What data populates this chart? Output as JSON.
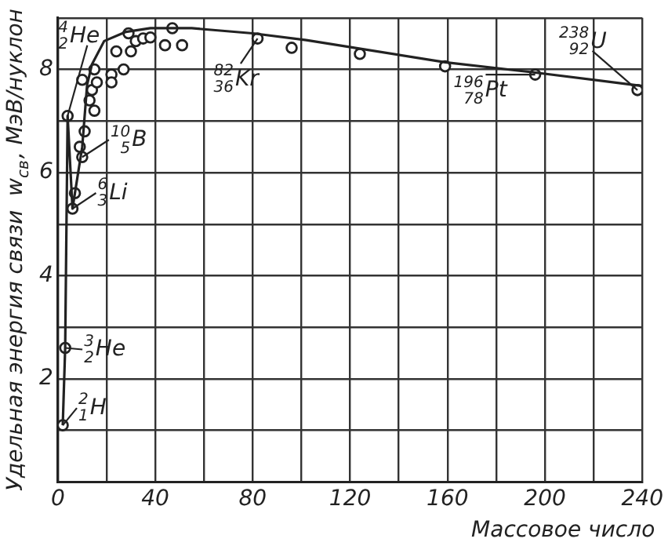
{
  "chart_data": {
    "type": "scatter",
    "xlabel": "Массовое число",
    "ylabel": "Удельная энергия связи  w$_{св}$, МэВ/нуклон",
    "xlim": [
      0,
      240
    ],
    "xticks": [
      0,
      {
        "value": 20,
        "label": null
      },
      40,
      {
        "value": 60,
        "label": null
      },
      80,
      {
        "value": 100,
        "label": null
      },
      120,
      {
        "value": 140,
        "label": null
      },
      160,
      {
        "value": 180,
        "label": null
      },
      200,
      {
        "value": 220,
        "label": null
      },
      240
    ],
    "ylim": [
      0,
      9
    ],
    "yticks": [
      {
        "value": 1,
        "label": null
      },
      2,
      {
        "value": 3,
        "label": null
      },
      4,
      {
        "value": 5,
        "label": null
      },
      6,
      {
        "value": 7,
        "label": null
      },
      8,
      {
        "value": 9,
        "label": null
      }
    ],
    "grid": true,
    "legend": false,
    "series": [
      {
        "type": "line",
        "marker": "none",
        "color": "#222222",
        "x": [
          2,
          3,
          4,
          6,
          7,
          10,
          12,
          14,
          19,
          28,
          38,
          55,
          80,
          102,
          159,
          196,
          240
        ],
        "values": [
          1.1,
          2.6,
          7.1,
          5.3,
          5.6,
          6.5,
          7.7,
          8.1,
          8.55,
          8.73,
          8.8,
          8.8,
          8.7,
          8.57,
          8.14,
          7.94,
          7.68
        ]
      },
      {
        "marker": "circle",
        "color": "#222222",
        "x": [
          2,
          3,
          4,
          6,
          7,
          9,
          10,
          11,
          10,
          13,
          14,
          15,
          16,
          15,
          22,
          22,
          27,
          24,
          29,
          30,
          32,
          35,
          38,
          47,
          44,
          51,
          82,
          96,
          124,
          159,
          196,
          238
        ],
        "values": [
          1.1,
          2.6,
          7.1,
          5.3,
          5.6,
          6.5,
          6.3,
          6.8,
          7.8,
          7.4,
          7.6,
          7.2,
          7.75,
          8.0,
          7.9,
          7.75,
          8.0,
          8.35,
          8.7,
          8.35,
          8.55,
          8.6,
          8.62,
          8.8,
          8.47,
          8.47,
          8.6,
          8.42,
          8.3,
          8.06,
          7.9,
          7.6
        ]
      }
    ],
    "annotations": [
      {
        "text": "$^{4}$$_{2}$He",
        "x": 4,
        "y": 7.1
      },
      {
        "text": "$^{6}$$_{3}$Li",
        "x": 6,
        "y": 5.3
      },
      {
        "text": "$^{10}$$_{5}$B",
        "x": 10,
        "y": 6.3
      },
      {
        "text": "$^{82}$$_{36}$Kr",
        "x": 82,
        "y": 8.6
      },
      {
        "text": "$^{196}$$_{78}$Pt",
        "x": 196,
        "y": 7.9
      },
      {
        "text": "$^{238}$$_{92}$U",
        "x": 238,
        "y": 7.6
      },
      {
        "text": "$^{3}$$_{2}$He",
        "x": 3,
        "y": 2.6
      },
      {
        "text": "$^{2}$$_{1}$H",
        "x": 2,
        "y": 1.1
      }
    ]
  }
}
